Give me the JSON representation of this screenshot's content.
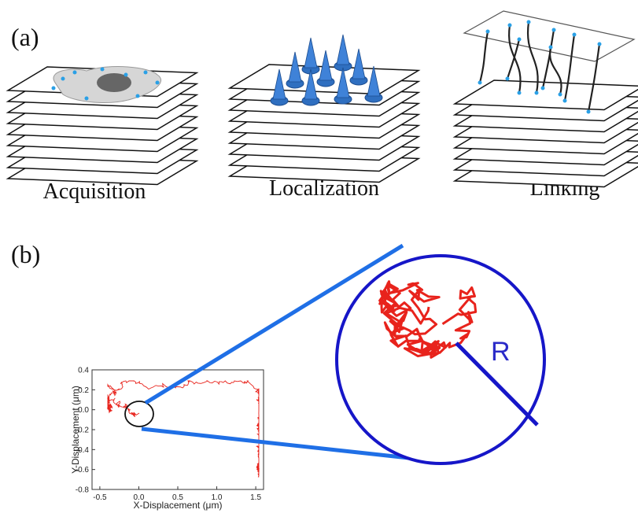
{
  "panel_a": {
    "label": "(a)",
    "steps": [
      "Acquisition",
      "Localization",
      "Linking"
    ]
  },
  "panel_b": {
    "label": "(b)",
    "zoom_label": "R",
    "plot": {
      "xlabel": "X-Displacement (μm)",
      "ylabel": "Y-Displacement (μm)",
      "xlim": [
        -0.6,
        1.6
      ],
      "ylim": [
        -0.8,
        0.4
      ],
      "xticks": [
        -0.5,
        {
          "value": 0,
          "label": "0.0"
        },
        0.5,
        {
          "value": 1,
          "label": "1.0"
        },
        1.5
      ],
      "yticks": [
        0.4,
        0.2,
        {
          "value": 0,
          "label": "0.0"
        },
        -0.2,
        -0.4,
        -0.6,
        -0.8
      ]
    }
  }
}
